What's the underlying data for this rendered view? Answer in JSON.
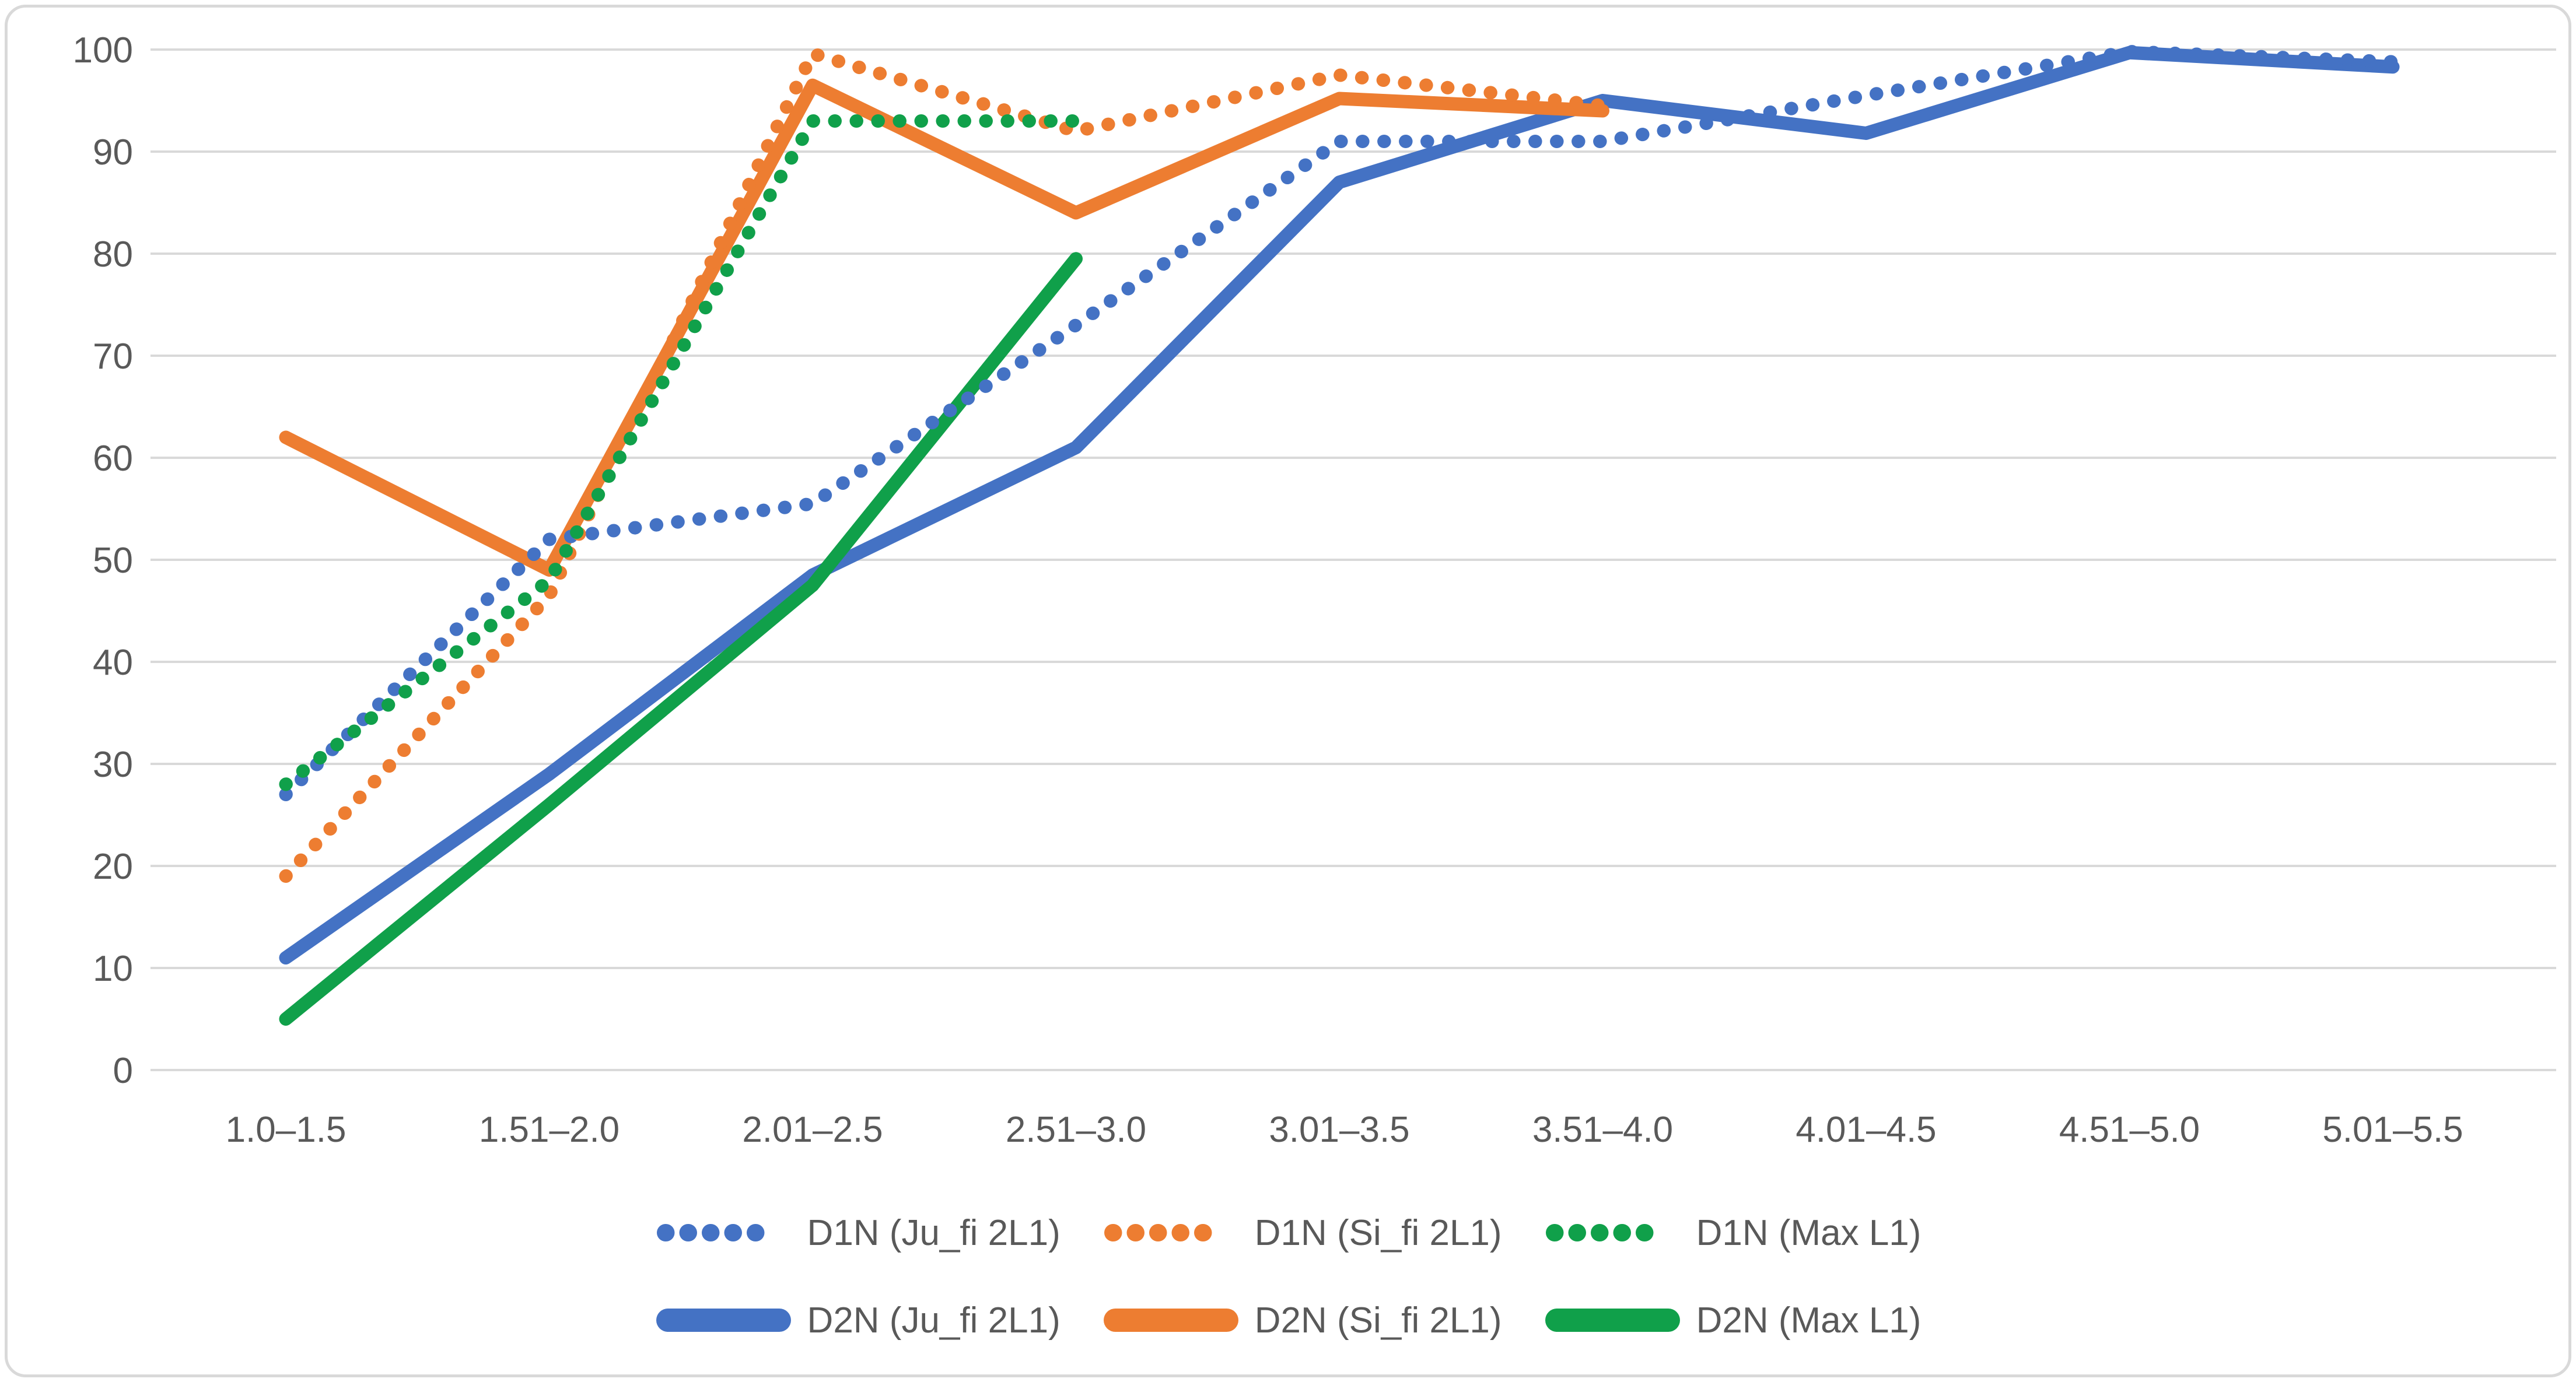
{
  "chart_data": {
    "type": "line",
    "title": "",
    "xlabel": "",
    "ylabel": "",
    "grid": true,
    "legend_position": "bottom",
    "categories": [
      "1.0–1.5",
      "1.51–2.0",
      "2.01–2.5",
      "2.51–3.0",
      "3.01–3.5",
      "3.51–4.0",
      "4.01–4.5",
      "4.51–5.0",
      "5.01–5.5"
    ],
    "y_axis": {
      "min": 0,
      "max": 100,
      "step": 10,
      "ticks": [
        100,
        90,
        80,
        70,
        60,
        50,
        40,
        30,
        20,
        10,
        0
      ]
    },
    "series": [
      {
        "name": "D1N (Ju_fi 2L1)",
        "group": "D1N",
        "style": "dotted",
        "color": "#4472c4",
        "values": [
          27,
          52,
          55.5,
          73,
          91,
          91,
          95.5,
          99.8,
          98.8
        ]
      },
      {
        "name": "D1N (Si_fi 2L1)",
        "group": "D1N",
        "style": "dotted",
        "color": "#ed7d31",
        "values": [
          19,
          46.5,
          99.6,
          92,
          97.5,
          94.5,
          null,
          null,
          null
        ]
      },
      {
        "name": "D1N (Max L1)",
        "group": "D1N",
        "style": "dotted",
        "color": "#10a04a",
        "values": [
          28,
          48,
          93,
          93,
          null,
          null,
          null,
          null,
          null
        ]
      },
      {
        "name": "D2N (Ju_fi 2L1)",
        "group": "D2N",
        "style": "solid",
        "color": "#4472c4",
        "values": [
          11,
          29,
          48.5,
          61,
          87,
          95,
          91.8,
          99.7,
          98.3
        ]
      },
      {
        "name": "D2N (Si_fi 2L1)",
        "group": "D2N",
        "style": "solid",
        "color": "#ed7d31",
        "values": [
          62,
          49,
          96.5,
          84,
          95.2,
          94,
          null,
          null,
          null
        ]
      },
      {
        "name": "D2N (Max L1)",
        "group": "D2N",
        "style": "solid",
        "color": "#10a04a",
        "values": [
          5,
          26,
          47.5,
          79.5,
          null,
          null,
          null,
          null,
          null
        ]
      }
    ],
    "colors": {
      "blue": "#4472c4",
      "orange": "#ed7d31",
      "green": "#10a04a",
      "axis_text": "#595959",
      "gridline": "#d9d9d9"
    }
  }
}
